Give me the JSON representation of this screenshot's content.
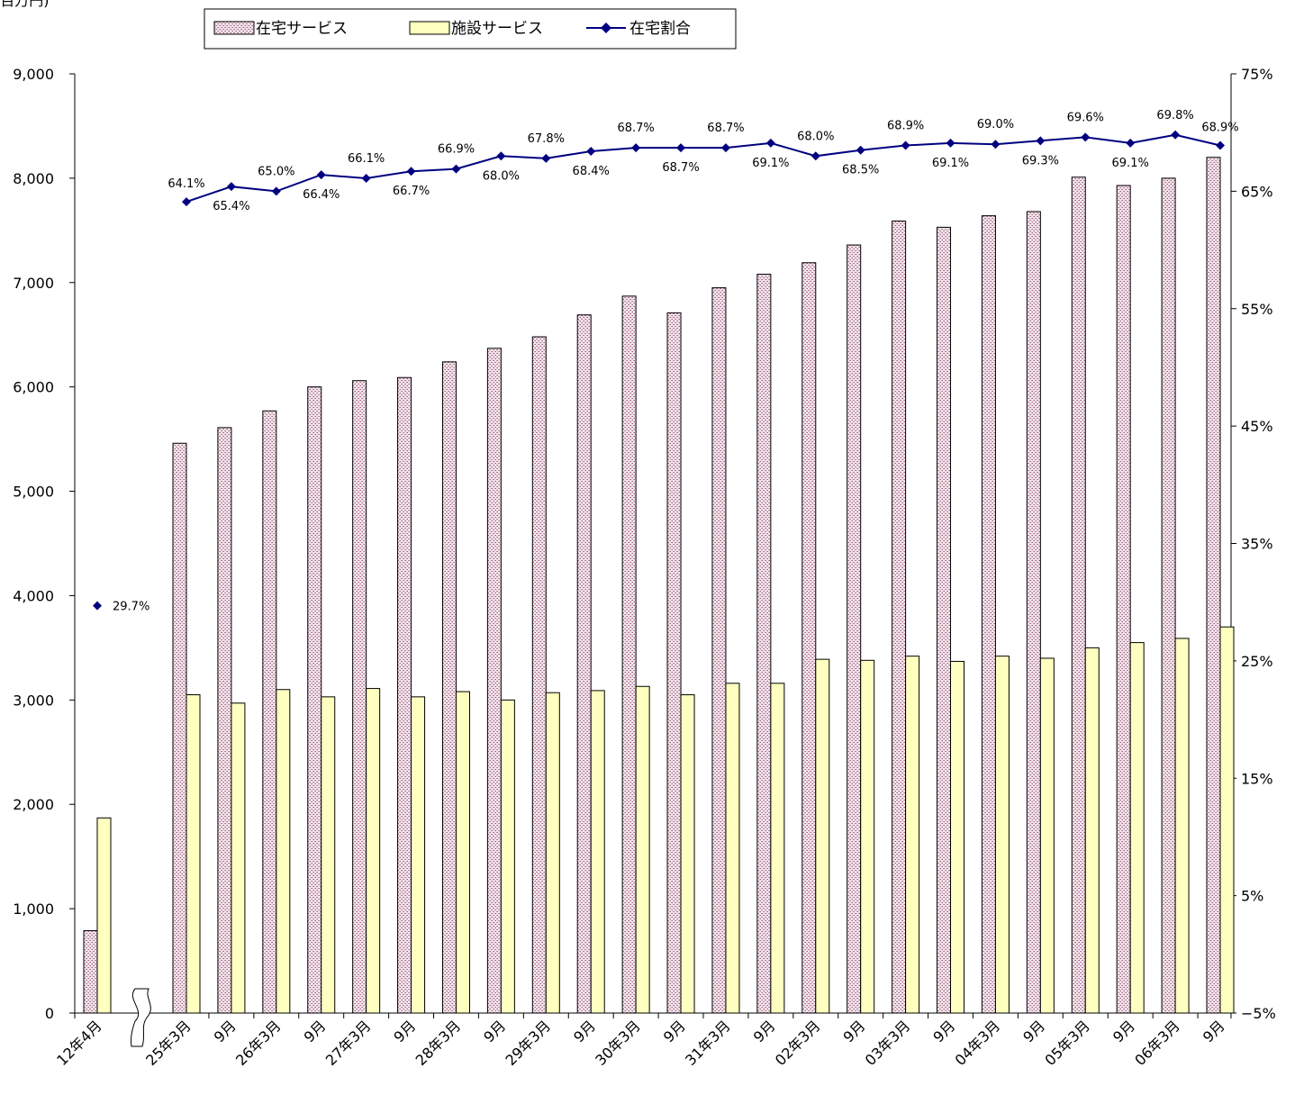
{
  "unit_label": "(百万円)",
  "chart_data": {
    "type": "bar",
    "categories": [
      "12年4月",
      "25年3月",
      "9月",
      "26年3月",
      "9月",
      "27年3月",
      "9月",
      "28年3月",
      "9月",
      "29年3月",
      "9月",
      "30年3月",
      "9月",
      "31年3月",
      "9月",
      "02年3月",
      "9月",
      "03年3月",
      "9月",
      "04年3月",
      "9月",
      "05年3月",
      "9月",
      "06年3月",
      "9月"
    ],
    "series": [
      {
        "name": "在宅サービス",
        "type": "bar",
        "axis": "left",
        "color": "#d9b8c8",
        "values": [
          790,
          5460,
          5610,
          5770,
          6000,
          6060,
          6090,
          6240,
          6370,
          6480,
          6690,
          6870,
          6710,
          6950,
          7080,
          7190,
          7360,
          7590,
          7530,
          7640,
          7680,
          8010,
          7930,
          8000,
          8200
        ]
      },
      {
        "name": "施設サービス",
        "type": "bar",
        "axis": "left",
        "color": "#ffffc0",
        "values": [
          1870,
          3050,
          2970,
          3100,
          3030,
          3110,
          3030,
          3080,
          3000,
          3070,
          3090,
          3130,
          3050,
          3160,
          3160,
          3390,
          3380,
          3420,
          3370,
          3420,
          3400,
          3500,
          3550,
          3590,
          3700
        ]
      },
      {
        "name": "在宅割合",
        "type": "line",
        "axis": "right",
        "color": "#000080",
        "values": [
          29.7,
          64.1,
          65.4,
          65.0,
          66.4,
          66.1,
          66.7,
          66.9,
          68.0,
          67.8,
          68.4,
          68.7,
          68.7,
          68.7,
          69.1,
          68.0,
          68.5,
          68.9,
          69.1,
          69.0,
          69.3,
          69.6,
          69.1,
          69.8,
          68.9
        ],
        "labels": [
          "29.7%",
          "64.1%",
          "65.4%",
          "65.0%",
          "66.4%",
          "66.1%",
          "66.7%",
          "66.9%",
          "68.0%",
          "67.8%",
          "68.4%",
          "68.7%",
          "68.7%",
          "68.7%",
          "69.1%",
          "68.0%",
          "68.5%",
          "68.9%",
          "69.1%",
          "69.0%",
          "69.3%",
          "69.6%",
          "69.1%",
          "69.8%",
          "68.9%"
        ]
      }
    ],
    "y_left": {
      "ylim": [
        0,
        9000
      ],
      "ticks": [
        0,
        1000,
        2000,
        3000,
        4000,
        5000,
        6000,
        7000,
        8000,
        9000
      ],
      "tick_labels": [
        "0",
        "1,000",
        "2,000",
        "3,000",
        "4,000",
        "5,000",
        "6,000",
        "7,000",
        "8,000",
        "9,000"
      ]
    },
    "y_right": {
      "ylim": [
        -5,
        75
      ],
      "ticks": [
        -5,
        5,
        15,
        25,
        35,
        45,
        55,
        65,
        75
      ],
      "tick_labels": [
        "−5%",
        "5%",
        "15%",
        "25%",
        "35%",
        "45%",
        "55%",
        "65%",
        "75%"
      ]
    },
    "axis_break": "between 12年4月 and 25年3月",
    "legend": "top-center",
    "grid": false
  }
}
